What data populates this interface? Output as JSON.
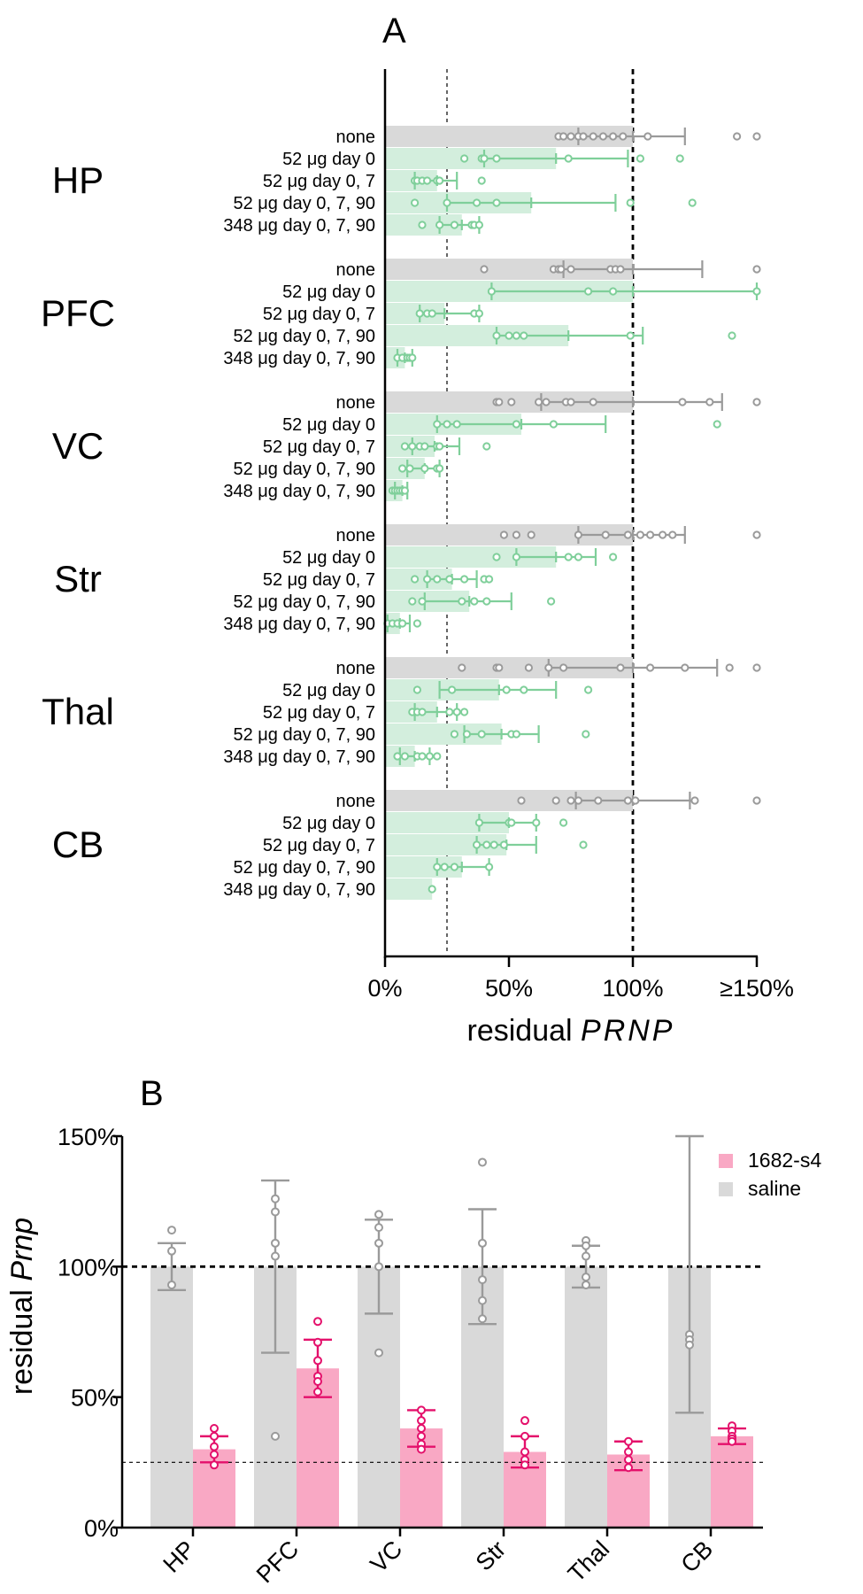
{
  "colors": {
    "saline_gray": "#d9d9d9",
    "saline_gray_dark": "#9a9a9a",
    "green_fill": "#d3eedd",
    "green": "#7fcf9a",
    "pink_fill": "#f9a8c4",
    "pink": "#e4106b"
  },
  "chart_data": [
    {
      "panel": "A",
      "type": "bar",
      "orientation": "horizontal",
      "xlabel_prefix": "residual ",
      "xlabel_italic": "PRNP",
      "xlim": [
        0,
        150
      ],
      "x_ticks": [
        0,
        50,
        100,
        150
      ],
      "x_tick_labels": [
        "0%",
        "50%",
        "100%",
        "≥150%"
      ],
      "reference_lines": [
        25,
        100
      ],
      "row_labels": [
        "none",
        "52 μg day 0",
        "52 μg day 0, 7",
        "52 μg day 0, 7, 90",
        "348 μg day 0, 7, 90"
      ],
      "groups": [
        {
          "region": "HP",
          "rows": [
            {
              "mean": 100,
              "err": [
                78,
                121
              ],
              "points": [
                70,
                72,
                75,
                78,
                80,
                84,
                88,
                92,
                96,
                106,
                142,
                150
              ]
            },
            {
              "mean": 69,
              "err": [
                40,
                98
              ],
              "points": [
                32,
                39,
                40,
                45,
                74,
                103,
                119
              ]
            },
            {
              "mean": 21,
              "err": [
                12,
                29
              ],
              "points": [
                12,
                13,
                15,
                17,
                21,
                22,
                39
              ]
            },
            {
              "mean": 59,
              "err": [
                25,
                93
              ],
              "points": [
                12,
                25,
                37,
                45,
                99,
                124
              ]
            },
            {
              "mean": 31,
              "err": [
                22,
                38
              ],
              "points": [
                15,
                22,
                28,
                35,
                36,
                38
              ]
            }
          ]
        },
        {
          "region": "PFC",
          "rows": [
            {
              "mean": 100,
              "err": [
                72,
                128
              ],
              "points": [
                40,
                68,
                70,
                71,
                75,
                91,
                93,
                95,
                150
              ]
            },
            {
              "mean": 100,
              "err": [
                43,
                150
              ],
              "points": [
                43,
                82,
                92,
                150
              ]
            },
            {
              "mean": 24,
              "err": [
                14,
                38
              ],
              "points": [
                14,
                17,
                19,
                36,
                38
              ]
            },
            {
              "mean": 74,
              "err": [
                45,
                104
              ],
              "points": [
                45,
                50,
                53,
                56,
                99,
                140
              ]
            },
            {
              "mean": 8,
              "err": [
                5,
                11
              ],
              "points": [
                5,
                7,
                9,
                10,
                11
              ]
            }
          ]
        },
        {
          "region": "VC",
          "rows": [
            {
              "mean": 100,
              "err": [
                63,
                136
              ],
              "points": [
                45,
                46,
                51,
                62,
                65,
                73,
                75,
                84,
                120,
                131,
                150
              ]
            },
            {
              "mean": 55,
              "err": [
                21,
                89
              ],
              "points": [
                21,
                25,
                29,
                53,
                68,
                134
              ]
            },
            {
              "mean": 20,
              "err": [
                11,
                30
              ],
              "points": [
                8,
                11,
                14,
                16,
                21,
                22,
                41
              ]
            },
            {
              "mean": 16,
              "err": [
                9,
                22
              ],
              "points": [
                7,
                10,
                16,
                21,
                22
              ]
            },
            {
              "mean": 7,
              "err": [
                4,
                9
              ],
              "points": [
                3,
                4,
                5,
                6,
                7,
                8
              ]
            }
          ]
        },
        {
          "region": "Str",
          "rows": [
            {
              "mean": 100,
              "err": [
                78,
                121
              ],
              "points": [
                48,
                53,
                59,
                78,
                89,
                98,
                103,
                107,
                112,
                116,
                150
              ]
            },
            {
              "mean": 69,
              "err": [
                53,
                85
              ],
              "points": [
                45,
                53,
                74,
                78,
                92
              ]
            },
            {
              "mean": 27,
              "err": [
                17,
                37
              ],
              "points": [
                12,
                17,
                21,
                26,
                32,
                40,
                42
              ]
            },
            {
              "mean": 34,
              "err": [
                16,
                51
              ],
              "points": [
                11,
                15,
                31,
                36,
                41,
                67
              ]
            },
            {
              "mean": 6,
              "err": [
                1,
                10
              ],
              "points": [
                1,
                3,
                5,
                7,
                13
              ]
            }
          ]
        },
        {
          "region": "Thal",
          "rows": [
            {
              "mean": 100,
              "err": [
                66,
                134
              ],
              "points": [
                31,
                45,
                46,
                58,
                66,
                72,
                95,
                107,
                121,
                139,
                150
              ]
            },
            {
              "mean": 46,
              "err": [
                22,
                69
              ],
              "points": [
                13,
                27,
                49,
                56,
                82
              ]
            },
            {
              "mean": 21,
              "err": [
                12,
                29
              ],
              "points": [
                11,
                13,
                15,
                26,
                29,
                32
              ]
            },
            {
              "mean": 47,
              "err": [
                32,
                62
              ],
              "points": [
                28,
                33,
                39,
                51,
                53,
                81
              ]
            },
            {
              "mean": 12,
              "err": [
                6,
                18
              ],
              "points": [
                5,
                8,
                13,
                15,
                18,
                21
              ]
            }
          ]
        },
        {
          "region": "CB",
          "rows": [
            {
              "mean": 100,
              "err": [
                77,
                123
              ],
              "points": [
                55,
                69,
                75,
                78,
                86,
                98,
                101,
                125,
                150
              ]
            },
            {
              "mean": 50,
              "err": [
                38,
                61
              ],
              "points": [
                38,
                50,
                51,
                61,
                72
              ]
            },
            {
              "mean": 49,
              "err": [
                37,
                61
              ],
              "points": [
                37,
                41,
                44,
                48,
                80
              ]
            },
            {
              "mean": 31,
              "err": [
                21,
                42
              ],
              "points": [
                21,
                24,
                28,
                42
              ]
            },
            {
              "mean": 19,
              "err": null,
              "points": [
                19
              ]
            }
          ]
        }
      ]
    },
    {
      "panel": "B",
      "type": "bar",
      "ylabel_prefix": "residual ",
      "ylabel_italic": "Prnp",
      "ylim": [
        0,
        150
      ],
      "y_ticks": [
        0,
        50,
        100,
        150
      ],
      "y_tick_labels": [
        "0%",
        "50%",
        "100%",
        "150%"
      ],
      "reference_lines": [
        25,
        100
      ],
      "categories": [
        "HP",
        "PFC",
        "VC",
        "Str",
        "Thal",
        "CB"
      ],
      "legend": [
        {
          "name": "1682-s4",
          "color": "#f9a8c4"
        },
        {
          "name": "saline",
          "color": "#d9d9d9"
        }
      ],
      "legend_position": "top-right",
      "series": [
        {
          "name": "saline",
          "values": [
            100,
            100,
            100,
            100,
            100,
            100
          ],
          "err": [
            [
              91,
              109
            ],
            [
              67,
              133
            ],
            [
              82,
              118
            ],
            [
              78,
              122
            ],
            [
              92,
              108
            ],
            [
              44,
              156
            ]
          ],
          "points": [
            [
              114,
              106,
              93
            ],
            [
              126,
              121,
              109,
              104,
              35
            ],
            [
              120,
              115,
              109,
              100,
              67
            ],
            [
              140,
              109,
              95,
              87,
              80
            ],
            [
              110,
              108,
              104,
              96,
              93
            ],
            [
              74,
              72,
              70
            ]
          ]
        },
        {
          "name": "1682-s4",
          "values": [
            30,
            61,
            38,
            29,
            28,
            35
          ],
          "err": [
            [
              25,
              35
            ],
            [
              50,
              72
            ],
            [
              31,
              45
            ],
            [
              23,
              35
            ],
            [
              22,
              33
            ],
            [
              32,
              38
            ]
          ],
          "points": [
            [
              38,
              35,
              31,
              28,
              24
            ],
            [
              79,
              71,
              64,
              58,
              56,
              52
            ],
            [
              45,
              41,
              38,
              35,
              32,
              30
            ],
            [
              41,
              35,
              29,
              26,
              24
            ],
            [
              33,
              29,
              26,
              23
            ],
            [
              39,
              37,
              35,
              34,
              33
            ]
          ]
        }
      ]
    }
  ],
  "panel_labels": [
    "A",
    "B"
  ]
}
